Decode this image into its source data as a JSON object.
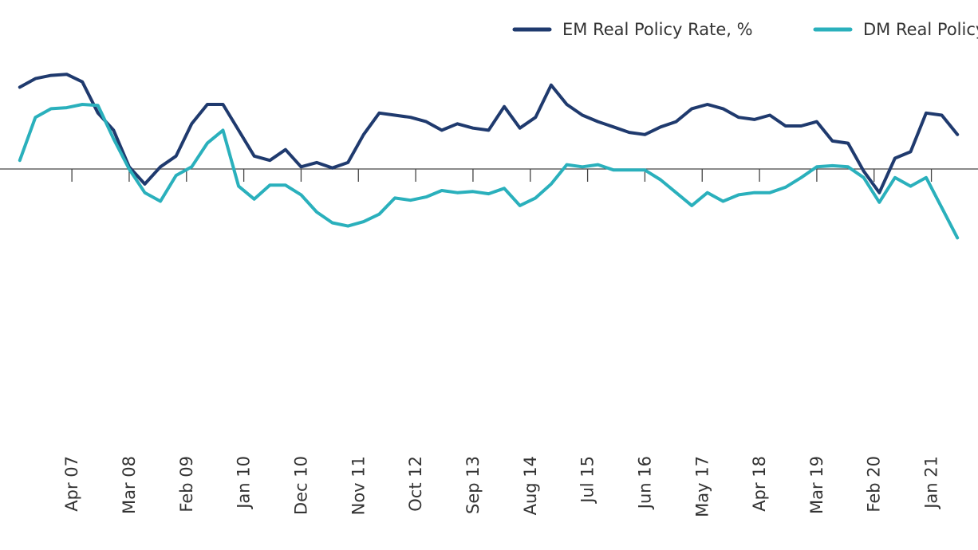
{
  "chart_data": {
    "type": "line",
    "title": "",
    "xlabel": "",
    "ylabel": "",
    "ylim": [
      -6,
      4.5
    ],
    "legend_position": "top-right",
    "grid": false,
    "tick_labels": [
      "Apr 07",
      "Mar 08",
      "Feb 09",
      "Jan 10",
      "Dec 10",
      "Nov 11",
      "Oct 12",
      "Sep 13",
      "Aug 14",
      "Jul 15",
      "Jun 16",
      "May 17",
      "Apr 18",
      "Mar 19",
      "Feb 20",
      "Jan 21"
    ],
    "tick_index": [
      4,
      15,
      26,
      37,
      48,
      59,
      70,
      81,
      92,
      103,
      114,
      125,
      136,
      147,
      158,
      169
    ],
    "series": [
      {
        "name": "EM Real Policy Rate, %",
        "color": "#1f3a6e",
        "points": [
          [
            -6,
            3.8
          ],
          [
            -3,
            4.2
          ],
          [
            0,
            4.35
          ],
          [
            3,
            4.4
          ],
          [
            6,
            4.05
          ],
          [
            9,
            2.6
          ],
          [
            12,
            1.8
          ],
          [
            15,
            0.1
          ],
          [
            18,
            -0.7
          ],
          [
            21,
            0.1
          ],
          [
            24,
            0.6
          ],
          [
            27,
            2.1
          ],
          [
            30,
            3.0
          ],
          [
            33,
            3.0
          ],
          [
            36,
            1.8
          ],
          [
            39,
            0.6
          ],
          [
            42,
            0.4
          ],
          [
            45,
            0.9
          ],
          [
            48,
            0.1
          ],
          [
            51,
            0.3
          ],
          [
            54,
            0.05
          ],
          [
            57,
            0.3
          ],
          [
            60,
            1.6
          ],
          [
            63,
            2.6
          ],
          [
            66,
            2.5
          ],
          [
            69,
            2.4
          ],
          [
            72,
            2.2
          ],
          [
            75,
            1.8
          ],
          [
            78,
            2.1
          ],
          [
            81,
            1.9
          ],
          [
            84,
            1.8
          ],
          [
            87,
            2.9
          ],
          [
            90,
            1.9
          ],
          [
            93,
            2.4
          ],
          [
            96,
            3.9
          ],
          [
            99,
            3.0
          ],
          [
            102,
            2.5
          ],
          [
            105,
            2.2
          ],
          [
            108,
            1.95
          ],
          [
            111,
            1.7
          ],
          [
            114,
            1.6
          ],
          [
            117,
            1.95
          ],
          [
            120,
            2.2
          ],
          [
            123,
            2.8
          ],
          [
            126,
            3.0
          ],
          [
            129,
            2.8
          ],
          [
            132,
            2.4
          ],
          [
            135,
            2.3
          ],
          [
            138,
            2.5
          ],
          [
            141,
            2.0
          ],
          [
            144,
            2.0
          ],
          [
            147,
            2.2
          ],
          [
            150,
            1.3
          ],
          [
            153,
            1.2
          ],
          [
            156,
            -0.1
          ],
          [
            159,
            -1.1
          ],
          [
            162,
            0.5
          ],
          [
            165,
            0.8
          ],
          [
            168,
            2.6
          ],
          [
            171,
            2.5
          ],
          [
            174,
            1.6
          ]
        ]
      },
      {
        "name": "DM Real Policy Rate, %",
        "color": "#2ab0bc",
        "points": [
          [
            -6,
            0.4
          ],
          [
            -3,
            2.4
          ],
          [
            0,
            2.8
          ],
          [
            3,
            2.85
          ],
          [
            6,
            3.0
          ],
          [
            9,
            2.95
          ],
          [
            12,
            1.4
          ],
          [
            15,
            0.0
          ],
          [
            18,
            -1.1
          ],
          [
            21,
            -1.5
          ],
          [
            24,
            -0.3
          ],
          [
            27,
            0.1
          ],
          [
            30,
            1.2
          ],
          [
            33,
            1.8
          ],
          [
            36,
            -0.8
          ],
          [
            39,
            -1.4
          ],
          [
            42,
            -0.75
          ],
          [
            45,
            -0.75
          ],
          [
            48,
            -1.2
          ],
          [
            51,
            -2.0
          ],
          [
            54,
            -2.5
          ],
          [
            57,
            -2.65
          ],
          [
            60,
            -2.45
          ],
          [
            63,
            -2.1
          ],
          [
            66,
            -1.35
          ],
          [
            69,
            -1.45
          ],
          [
            72,
            -1.3
          ],
          [
            75,
            -1.0
          ],
          [
            78,
            -1.1
          ],
          [
            81,
            -1.05
          ],
          [
            84,
            -1.15
          ],
          [
            87,
            -0.9
          ],
          [
            90,
            -1.7
          ],
          [
            93,
            -1.35
          ],
          [
            96,
            -0.7
          ],
          [
            99,
            0.2
          ],
          [
            102,
            0.1
          ],
          [
            105,
            0.2
          ],
          [
            108,
            -0.05
          ],
          [
            111,
            -0.05
          ],
          [
            114,
            -0.05
          ],
          [
            117,
            -0.5
          ],
          [
            120,
            -1.1
          ],
          [
            123,
            -1.7
          ],
          [
            126,
            -1.1
          ],
          [
            129,
            -1.5
          ],
          [
            132,
            -1.2
          ],
          [
            135,
            -1.1
          ],
          [
            138,
            -1.1
          ],
          [
            141,
            -0.85
          ],
          [
            144,
            -0.4
          ],
          [
            147,
            0.1
          ],
          [
            150,
            0.15
          ],
          [
            153,
            0.1
          ],
          [
            156,
            -0.4
          ],
          [
            159,
            -1.55
          ],
          [
            162,
            -0.4
          ],
          [
            165,
            -0.8
          ],
          [
            168,
            -0.4
          ],
          [
            171,
            -1.8
          ],
          [
            174,
            -3.2
          ]
        ]
      }
    ]
  }
}
